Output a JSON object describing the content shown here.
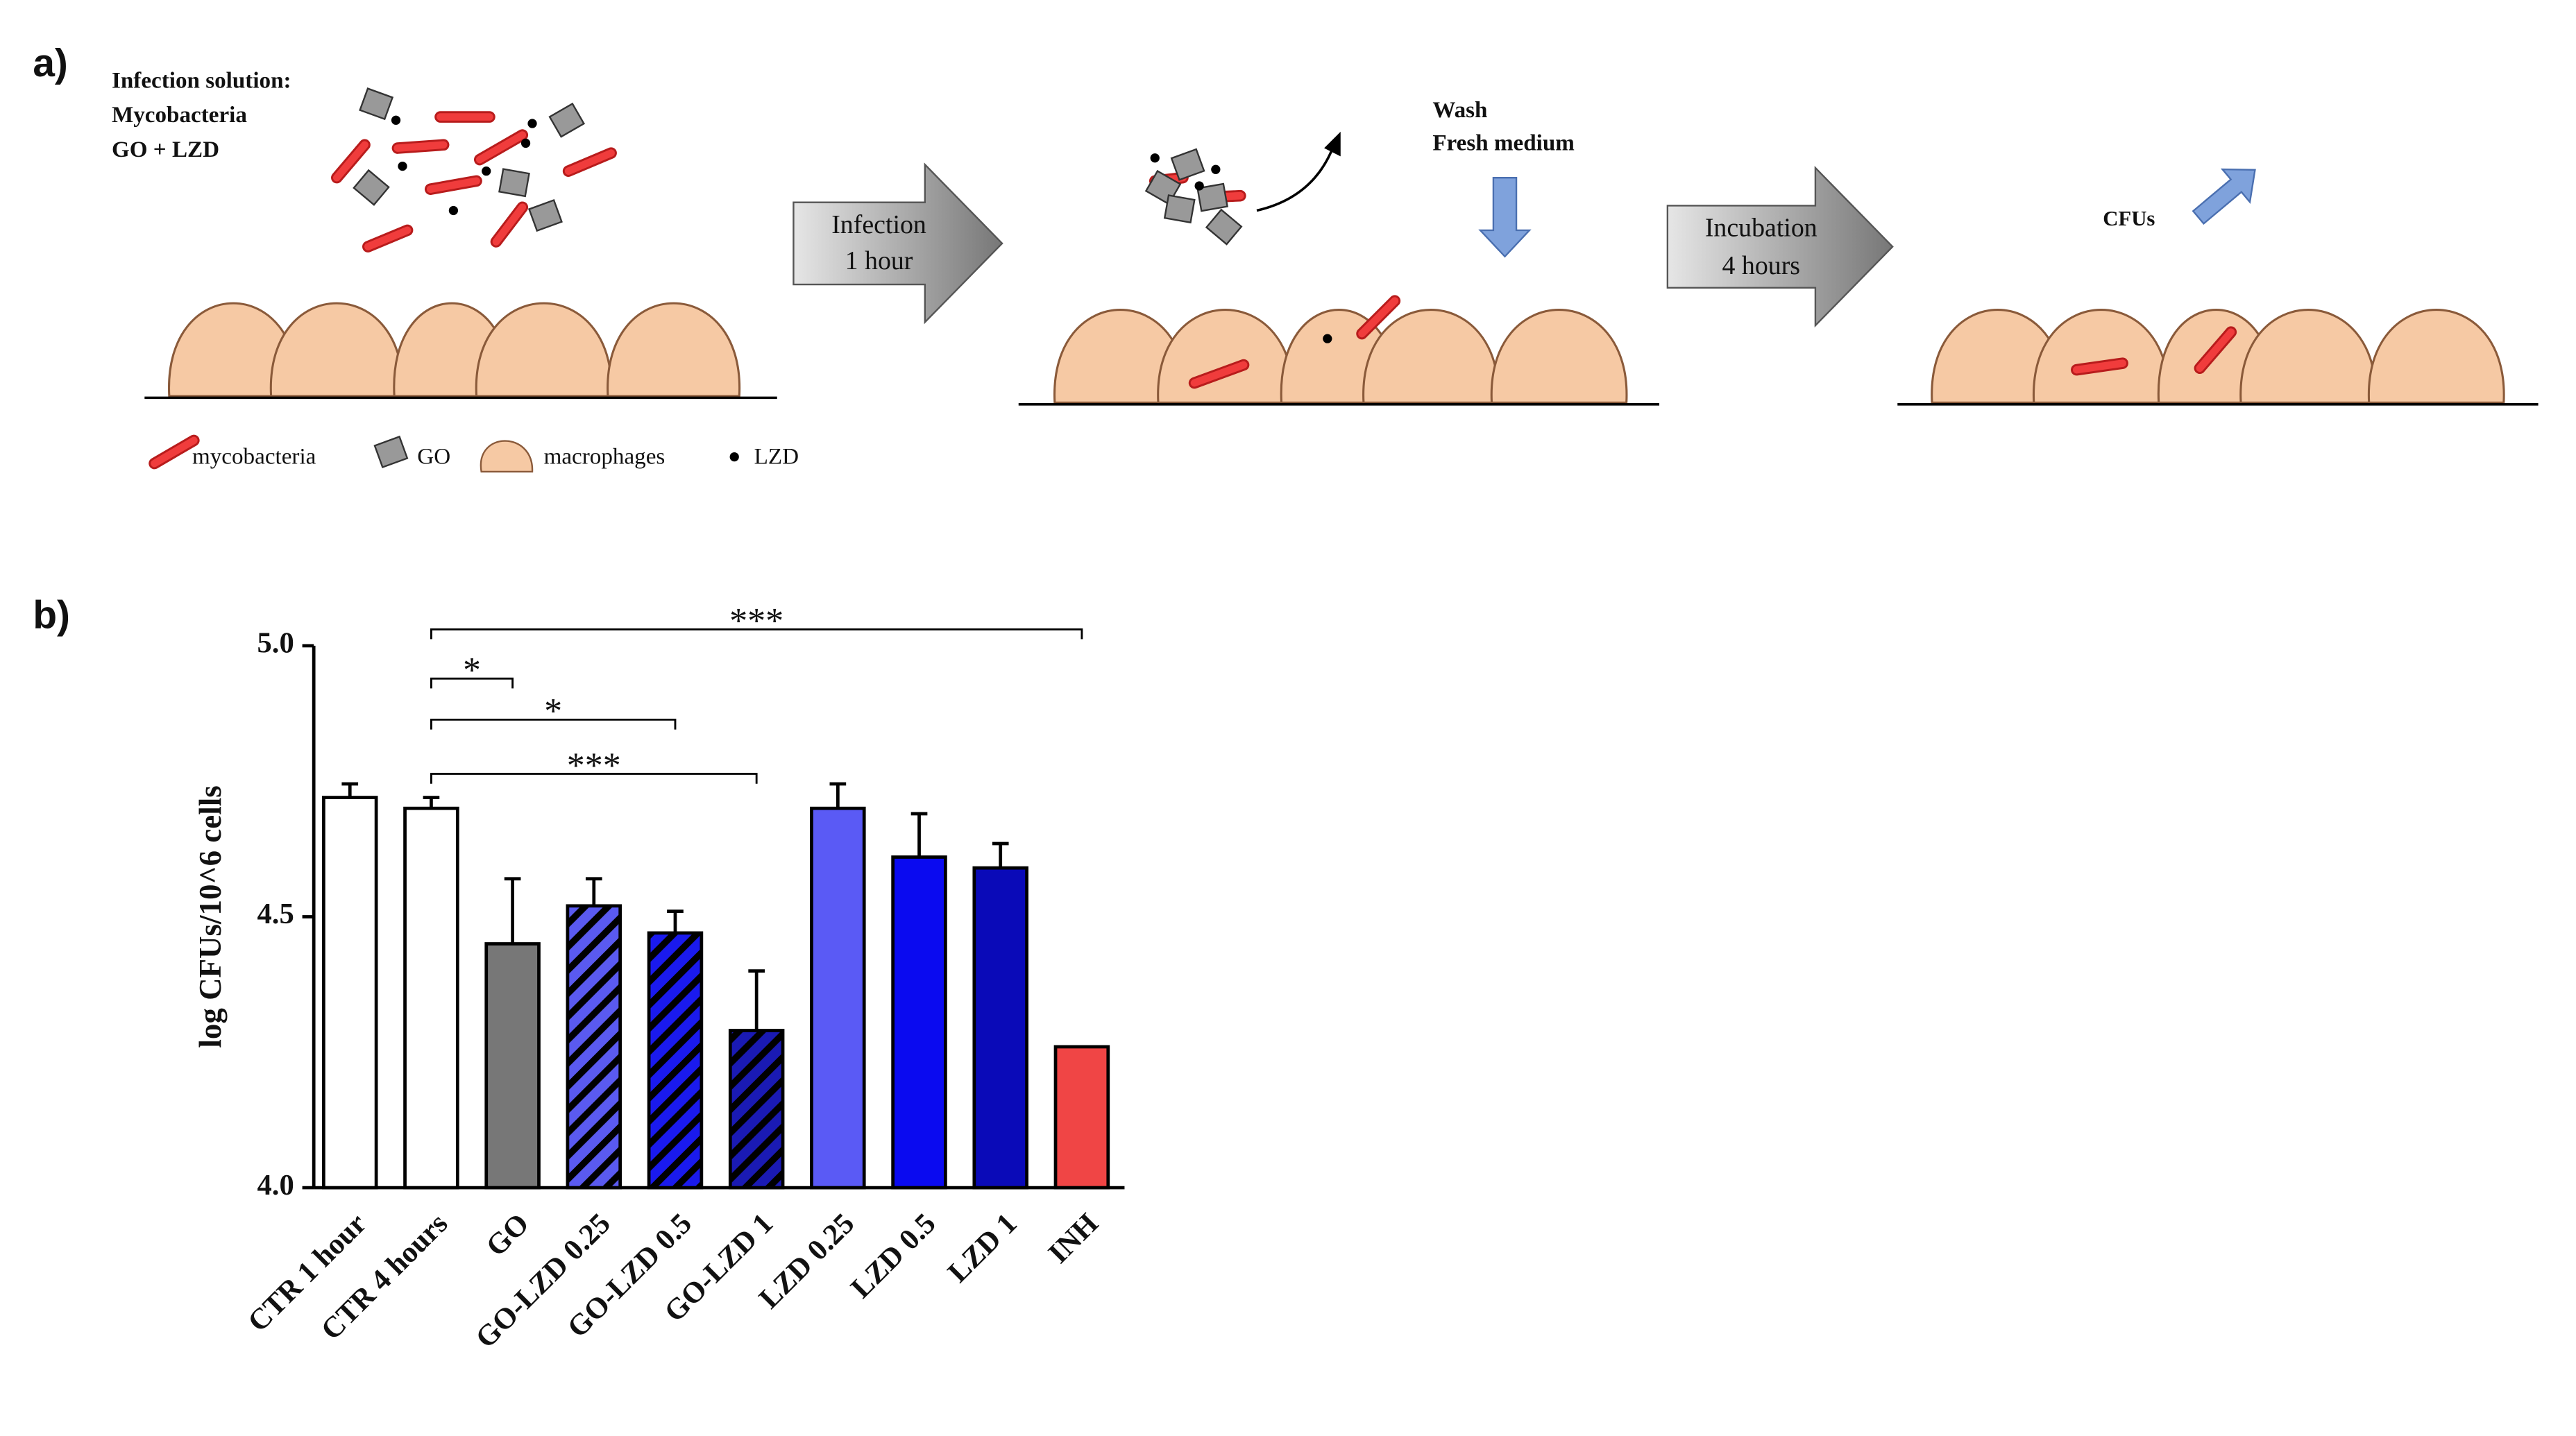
{
  "panel_a": {
    "label": "a)",
    "solution": {
      "title": "Infection solution:",
      "line1": "Mycobacteria",
      "line2": "GO + LZD"
    },
    "legend": {
      "mycobacteria": "mycobacteria",
      "go": "GO",
      "macrophages": "macrophages",
      "lzd": "LZD"
    },
    "step1": {
      "line1": "Infection",
      "line2": "1 hour"
    },
    "wash": {
      "line1": "Wash",
      "line2": "Fresh medium"
    },
    "step2": {
      "line1": "Incubation",
      "line2": "4 hours"
    },
    "cfus": "CFUs"
  },
  "panel_b": {
    "label": "b)"
  },
  "chart_data": {
    "type": "bar",
    "y_label": "log CFUs/10^6 cells",
    "categories": [
      "CTR 1 hour",
      "CTR 4 hours",
      "GO",
      "GO-LZD 0.25",
      "GO-LZD 0.5",
      "GO-LZD 1",
      "LZD 0.25",
      "LZD 0.5",
      "LZD 1",
      "INH"
    ],
    "values": [
      4.72,
      4.7,
      4.45,
      4.52,
      4.47,
      4.29,
      4.7,
      4.61,
      4.59,
      4.26
    ],
    "errors": [
      0.025,
      0.02,
      0.12,
      0.05,
      0.04,
      0.11,
      0.045,
      0.08,
      0.045,
      null
    ],
    "colors": [
      "#ffffff",
      "#ffffff",
      "#777777",
      "#5a5af0",
      "#1a1aee",
      "#1a1ab4",
      "#5a5af5",
      "#0a0af0",
      "#0a0ab8",
      "#f04545"
    ],
    "hatched": [
      false,
      false,
      false,
      true,
      true,
      true,
      false,
      false,
      false,
      false
    ],
    "ylim": [
      4.0,
      5.0
    ],
    "yticks": [
      {
        "value": 4.0,
        "label": "4.0"
      },
      4.5,
      {
        "value": 5.0,
        "label": "5.0"
      }
    ],
    "significance": [
      {
        "from": 1,
        "to": 9,
        "label": "***"
      },
      {
        "from": 1,
        "to": 2,
        "label": "*"
      },
      {
        "from": 1,
        "to": 4,
        "label": "*"
      },
      {
        "from": 1,
        "to": 5,
        "label": "***"
      }
    ]
  }
}
